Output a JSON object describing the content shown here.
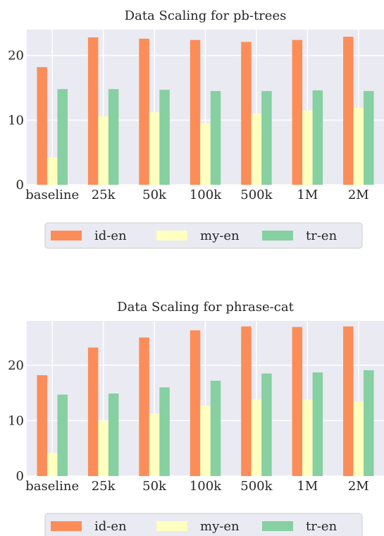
{
  "colors": {
    "panel_bg": "#eaeaf2",
    "grid": "#ffffff",
    "text": "#262626",
    "legend_border": "#cccccc"
  },
  "chart_data": [
    {
      "type": "bar",
      "title": "Data Scaling for pb-trees",
      "xlabel": "",
      "ylabel": "",
      "categories": [
        "baseline",
        "25k",
        "50k",
        "100k",
        "500k",
        "1M",
        "2M"
      ],
      "ylim": [
        0,
        24
      ],
      "yticks": [
        0,
        10,
        20
      ],
      "grid": true,
      "legend_position": "below",
      "series": [
        {
          "name": "id-en",
          "color": "#fc8d59",
          "values": [
            18.2,
            22.8,
            22.6,
            22.4,
            22.1,
            22.4,
            22.9
          ]
        },
        {
          "name": "my-en",
          "color": "#ffffbf",
          "values": [
            4.2,
            10.6,
            11.2,
            9.5,
            11.0,
            11.5,
            11.9
          ]
        },
        {
          "name": "tr-en",
          "color": "#86d0a2",
          "values": [
            14.8,
            14.8,
            14.7,
            14.5,
            14.5,
            14.6,
            14.5
          ]
        }
      ]
    },
    {
      "type": "bar",
      "title": "Data Scaling for phrase-cat",
      "xlabel": "",
      "ylabel": "",
      "categories": [
        "baseline",
        "25k",
        "50k",
        "100k",
        "500k",
        "1M",
        "2M"
      ],
      "ylim": [
        0,
        28
      ],
      "yticks": [
        0,
        10,
        20
      ],
      "grid": true,
      "legend_position": "below",
      "series": [
        {
          "name": "id-en",
          "color": "#fc8d59",
          "values": [
            18.2,
            23.2,
            25.0,
            26.3,
            27.0,
            26.9,
            27.0
          ]
        },
        {
          "name": "my-en",
          "color": "#ffffbf",
          "values": [
            4.2,
            10.0,
            11.3,
            12.7,
            13.8,
            13.8,
            13.4
          ]
        },
        {
          "name": "tr-en",
          "color": "#86d0a2",
          "values": [
            14.7,
            14.9,
            16.0,
            17.2,
            18.5,
            18.7,
            19.1
          ]
        }
      ]
    }
  ]
}
